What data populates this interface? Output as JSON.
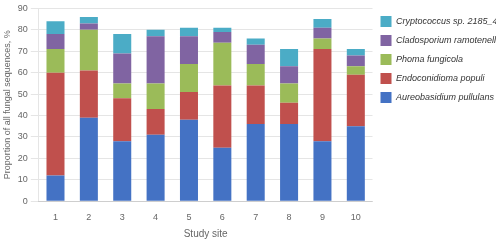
{
  "chart_data": {
    "type": "bar",
    "stacked": true,
    "xlabel": "Study site",
    "ylabel": "Proportion of all fungal sequences, %",
    "categories": [
      "1",
      "2",
      "3",
      "4",
      "5",
      "6",
      "7",
      "8",
      "9",
      "10"
    ],
    "series": [
      {
        "name": "Aureobasidium pullulans",
        "color": "#4472C4",
        "values": [
          12,
          39,
          28,
          31,
          38,
          25,
          36,
          36,
          28,
          35
        ]
      },
      {
        "name": "Endoconidioma populi",
        "color": "#C0504D",
        "values": [
          48,
          22,
          20,
          12,
          13,
          29,
          18,
          10,
          43,
          24
        ]
      },
      {
        "name": "Phoma fungicola",
        "color": "#9BBB59",
        "values": [
          11,
          19,
          7,
          12,
          13,
          20,
          10,
          9,
          5,
          4
        ]
      },
      {
        "name": "Cladosporium ramotenellum",
        "color": "#8064A2",
        "values": [
          7,
          3,
          14,
          22,
          13,
          5,
          9,
          8,
          5,
          5
        ]
      },
      {
        "name": "Cryptococcus sp. 2185_4",
        "color": "#4BACC6",
        "values": [
          6,
          3,
          9,
          3,
          4,
          2,
          3,
          8,
          4,
          3
        ]
      }
    ],
    "ylim": [
      0,
      90
    ],
    "yticks": [
      0,
      10,
      20,
      30,
      40,
      50,
      60,
      70,
      80,
      90
    ],
    "grid": true,
    "legend": "right"
  }
}
